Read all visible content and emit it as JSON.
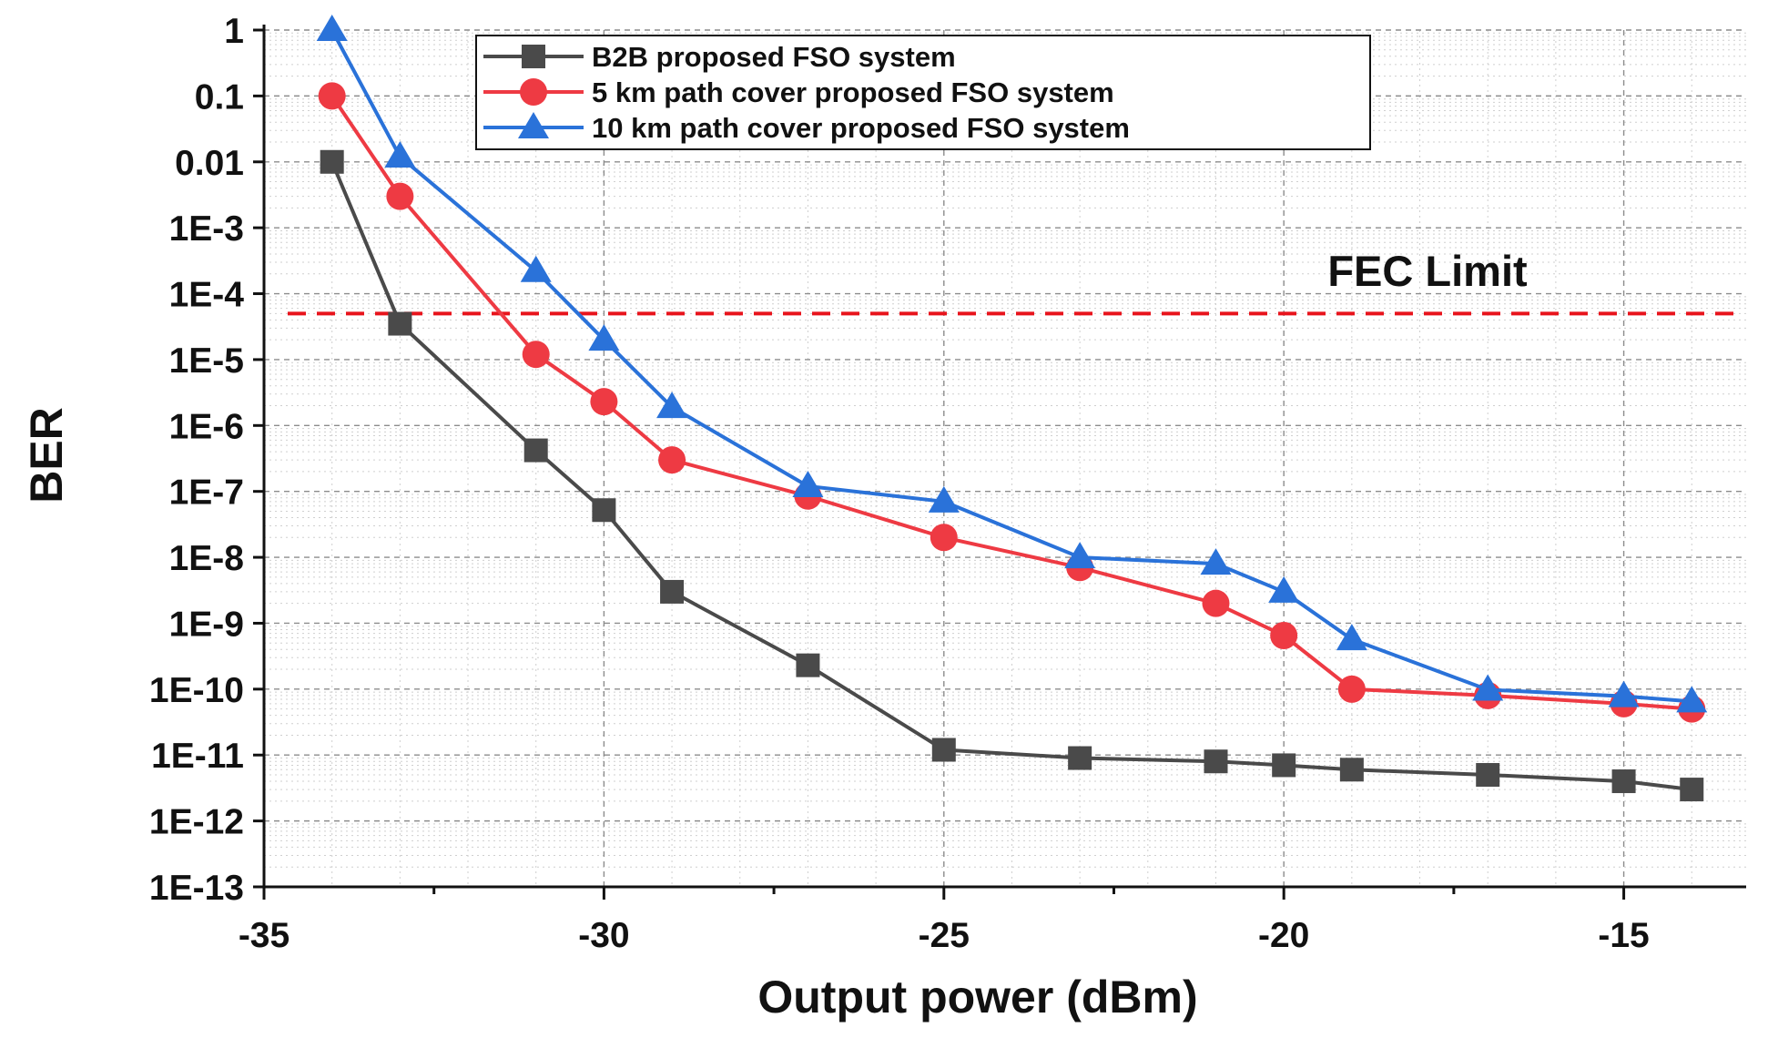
{
  "chart_data": {
    "type": "line",
    "title": "",
    "xlabel": "Output power (dBm)",
    "ylabel": "BER",
    "yscale": "log",
    "xlim": [
      -35,
      -13.2
    ],
    "ylim": [
      1e-13,
      1
    ],
    "grid": true,
    "legend_position": "top-center",
    "x_ticks": [
      -35,
      -30,
      -25,
      -20,
      -15
    ],
    "x_tick_labels": [
      "-35",
      "-30",
      "-25",
      "-20",
      "-15"
    ],
    "y_ticks": [
      1,
      0.1,
      0.01,
      0.001,
      0.0001,
      1e-05,
      1e-06,
      1e-07,
      1e-08,
      1e-09,
      1e-10,
      1e-11,
      1e-12,
      1e-13
    ],
    "y_tick_labels": [
      "1",
      "0.1",
      "0.01",
      "1E-3",
      "1E-4",
      "1E-5",
      "1E-6",
      "1E-7",
      "1E-8",
      "1E-9",
      "1E-10",
      "1E-11",
      "1E-12",
      "1E-13"
    ],
    "series": [
      {
        "name": "B2B proposed FSO system",
        "color": "#4a4a4a",
        "marker": "square",
        "x": [
          -34,
          -33,
          -31,
          -30,
          -29,
          -27,
          -25,
          -23,
          -21,
          -20,
          -19,
          -17,
          -15,
          -14
        ],
        "values": [
          0.01,
          3.5e-05,
          4.2e-07,
          5.2e-08,
          3e-09,
          2.3e-10,
          1.2e-11,
          9e-12,
          8e-12,
          7e-12,
          6e-12,
          5e-12,
          4e-12,
          3e-12
        ]
      },
      {
        "name": "5 km path cover proposed FSO system",
        "color": "#ee3a43",
        "marker": "circle",
        "x": [
          -34,
          -33,
          -31,
          -30,
          -29,
          -27,
          -25,
          -23,
          -21,
          -20,
          -19,
          -17,
          -15,
          -14
        ],
        "values": [
          0.1,
          0.003,
          1.2e-05,
          2.3e-06,
          3e-07,
          8.5e-08,
          2e-08,
          7e-09,
          2e-09,
          6.5e-10,
          1e-10,
          8e-11,
          6e-11,
          5e-11
        ]
      },
      {
        "name": "10 km path cover proposed FSO system",
        "color": "#2a72d9",
        "marker": "triangle",
        "x": [
          -34,
          -33,
          -31,
          -30,
          -29,
          -27,
          -25,
          -23,
          -21,
          -20,
          -19,
          -17,
          -15,
          -14
        ],
        "values": [
          1,
          0.012,
          0.00022,
          2e-05,
          1.9e-06,
          1.2e-07,
          7e-08,
          1e-08,
          8e-09,
          3e-09,
          5.7e-10,
          9.8e-11,
          7.8e-11,
          6.5e-11
        ]
      }
    ],
    "reference_lines": [
      {
        "label": "FEC Limit",
        "y": 5e-05,
        "color": "#e8141c",
        "style": "dashed"
      }
    ]
  }
}
